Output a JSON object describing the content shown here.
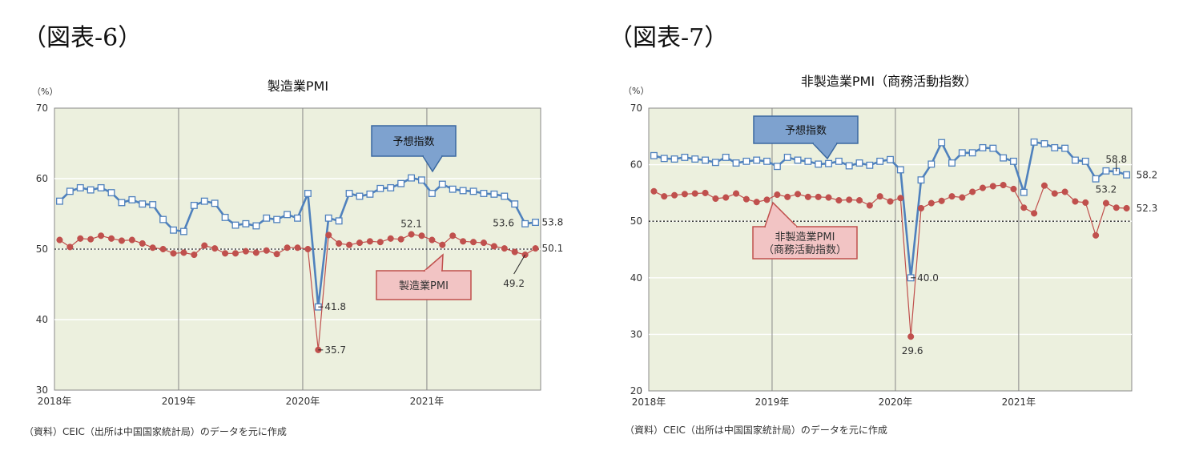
{
  "panels": [
    {
      "label": "（図表-6）"
    },
    {
      "label": "（図表-7）"
    }
  ],
  "chart_data": [
    {
      "type": "line",
      "title": "製造業PMI",
      "y_unit": "（%）",
      "ylim": [
        30,
        70
      ],
      "yticks": [
        "30",
        "40",
        "50",
        "60",
        "70"
      ],
      "xticks": [
        "2018年",
        "2019年",
        "2020年",
        "2021年"
      ],
      "grid": true,
      "reference_line": 50,
      "x": [
        "2018-01",
        "2018-02",
        "2018-03",
        "2018-04",
        "2018-05",
        "2018-06",
        "2018-07",
        "2018-08",
        "2018-09",
        "2018-10",
        "2018-11",
        "2018-12",
        "2019-01",
        "2019-02",
        "2019-03",
        "2019-04",
        "2019-05",
        "2019-06",
        "2019-07",
        "2019-08",
        "2019-09",
        "2019-10",
        "2019-11",
        "2019-12",
        "2020-01",
        "2020-02",
        "2020-03",
        "2020-04",
        "2020-05",
        "2020-06",
        "2020-07",
        "2020-08",
        "2020-09",
        "2020-10",
        "2020-11",
        "2020-12",
        "2021-01",
        "2021-02",
        "2021-03",
        "2021-04",
        "2021-05",
        "2021-06",
        "2021-07",
        "2021-08",
        "2021-09",
        "2021-10",
        "2021-11"
      ],
      "series": [
        {
          "name": "予想指数",
          "color": "#4f81bd",
          "marker": "square",
          "values": [
            56.8,
            58.2,
            58.7,
            58.4,
            58.7,
            58.0,
            56.6,
            57.0,
            56.4,
            56.3,
            54.2,
            52.7,
            52.5,
            56.2,
            56.8,
            56.5,
            54.5,
            53.4,
            53.6,
            53.3,
            54.4,
            54.2,
            54.9,
            54.4,
            57.9,
            41.8,
            54.4,
            54.0,
            57.9,
            57.5,
            57.8,
            58.6,
            58.7,
            59.3,
            60.1,
            59.8,
            57.9,
            59.2,
            58.5,
            58.3,
            58.2,
            57.9,
            57.8,
            57.5,
            56.4,
            53.6,
            53.8
          ]
        },
        {
          "name": "製造業PMI",
          "color": "#c0504d",
          "marker": "circle",
          "values": [
            51.3,
            50.3,
            51.5,
            51.4,
            51.9,
            51.5,
            51.2,
            51.3,
            50.8,
            50.2,
            50.0,
            49.4,
            49.5,
            49.2,
            50.5,
            50.1,
            49.4,
            49.4,
            49.7,
            49.5,
            49.8,
            49.3,
            50.2,
            50.2,
            50.0,
            35.7,
            52.0,
            50.8,
            50.6,
            50.9,
            51.1,
            51.0,
            51.5,
            51.4,
            52.1,
            51.9,
            51.3,
            50.6,
            51.9,
            51.1,
            51.0,
            50.9,
            50.4,
            50.1,
            49.6,
            49.2,
            50.1
          ]
        }
      ],
      "data_labels": [
        {
          "series": 0,
          "index": 25,
          "text": "41.8"
        },
        {
          "series": 1,
          "index": 25,
          "text": "35.7"
        },
        {
          "series": 1,
          "index": 34,
          "text": "52.1"
        },
        {
          "series": 0,
          "index": 45,
          "text": "53.6"
        },
        {
          "series": 0,
          "index": 46,
          "text": "53.8"
        },
        {
          "series": 1,
          "index": 45,
          "text": "49.2"
        },
        {
          "series": 1,
          "index": 46,
          "text": "50.1"
        }
      ],
      "callouts": [
        {
          "series": 0,
          "text": "予想指数"
        },
        {
          "series": 1,
          "text": "製造業PMI"
        }
      ],
      "source": "（資料）CEIC（出所は中国国家統計局）のデータを元に作成"
    },
    {
      "type": "line",
      "title": "非製造業PMI（商務活動指数）",
      "y_unit": "（%）",
      "ylim": [
        20,
        70
      ],
      "yticks": [
        "20",
        "30",
        "40",
        "50",
        "60",
        "70"
      ],
      "xticks": [
        "2018年",
        "2019年",
        "2020年",
        "2021年"
      ],
      "grid": true,
      "reference_line": 50,
      "x": [
        "2018-01",
        "2018-02",
        "2018-03",
        "2018-04",
        "2018-05",
        "2018-06",
        "2018-07",
        "2018-08",
        "2018-09",
        "2018-10",
        "2018-11",
        "2018-12",
        "2019-01",
        "2019-02",
        "2019-03",
        "2019-04",
        "2019-05",
        "2019-06",
        "2019-07",
        "2019-08",
        "2019-09",
        "2019-10",
        "2019-11",
        "2019-12",
        "2020-01",
        "2020-02",
        "2020-03",
        "2020-04",
        "2020-05",
        "2020-06",
        "2020-07",
        "2020-08",
        "2020-09",
        "2020-10",
        "2020-11",
        "2020-12",
        "2021-01",
        "2021-02",
        "2021-03",
        "2021-04",
        "2021-05",
        "2021-06",
        "2021-07",
        "2021-08",
        "2021-09",
        "2021-10",
        "2021-11"
      ],
      "series": [
        {
          "name": "予想指数",
          "color": "#4f81bd",
          "marker": "square",
          "values": [
            61.6,
            61.1,
            61.0,
            61.3,
            61.0,
            60.8,
            60.4,
            61.3,
            60.3,
            60.6,
            60.8,
            60.6,
            59.7,
            61.3,
            60.8,
            60.6,
            60.1,
            60.2,
            60.6,
            59.8,
            60.3,
            59.9,
            60.6,
            60.9,
            59.1,
            40.0,
            57.3,
            60.1,
            63.9,
            60.3,
            62.1,
            62.1,
            63.0,
            62.9,
            61.2,
            60.6,
            55.1,
            64.0,
            63.7,
            63.0,
            62.9,
            60.8,
            60.6,
            57.5,
            58.9,
            58.8,
            58.2
          ]
        },
        {
          "name": "非製造業PMI（商務活動指数）",
          "color": "#c0504d",
          "marker": "circle",
          "values": [
            55.3,
            54.4,
            54.6,
            54.8,
            54.9,
            55.0,
            54.0,
            54.2,
            54.9,
            53.9,
            53.4,
            53.8,
            54.7,
            54.3,
            54.8,
            54.3,
            54.3,
            54.2,
            53.7,
            53.8,
            53.7,
            52.8,
            54.4,
            53.5,
            54.1,
            29.6,
            52.3,
            53.2,
            53.6,
            54.4,
            54.2,
            55.2,
            55.9,
            56.2,
            56.4,
            55.7,
            52.4,
            51.4,
            56.3,
            54.9,
            55.2,
            53.5,
            53.3,
            47.5,
            53.2,
            52.4,
            52.3
          ]
        }
      ],
      "data_labels": [
        {
          "series": 0,
          "index": 25,
          "text": "40.0"
        },
        {
          "series": 1,
          "index": 25,
          "text": "29.6"
        },
        {
          "series": 0,
          "index": 45,
          "text": "58.8"
        },
        {
          "series": 0,
          "index": 46,
          "text": "58.2"
        },
        {
          "series": 1,
          "index": 44,
          "text": "53.2"
        },
        {
          "series": 1,
          "index": 46,
          "text": "52.3"
        }
      ],
      "callouts": [
        {
          "series": 0,
          "text": "予想指数"
        },
        {
          "series": 1,
          "text": "非製造業PMI\n（商務活動指数）"
        }
      ],
      "source": "（資料）CEIC（出所は中国国家統計局）のデータを元に作成"
    }
  ]
}
